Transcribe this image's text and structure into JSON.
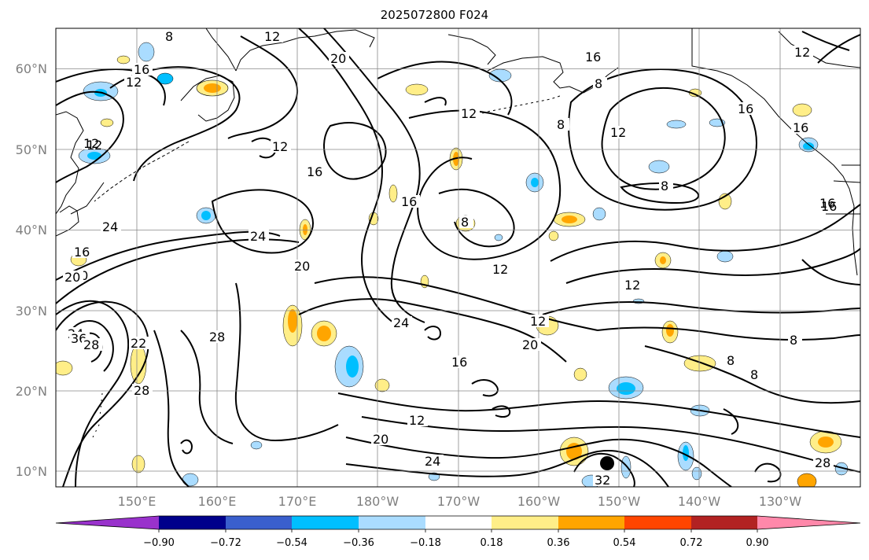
{
  "title": "2025072800 F024",
  "lon_labels": [
    "150°E",
    "160°E",
    "170°E",
    "180°W",
    "170°W",
    "160°W",
    "150°W",
    "140°W",
    "130°W"
  ],
  "lat_labels": [
    "60°N",
    "50°N",
    "40°N",
    "30°N",
    "20°N",
    "10°N"
  ],
  "colorbar": {
    "tick_labels": [
      "−0.90",
      "−0.72",
      "−0.54",
      "−0.36",
      "−0.18",
      "0.18",
      "0.36",
      "0.54",
      "0.72",
      "0.90"
    ],
    "colors": [
      "#9932cc",
      "#00008b",
      "#3a5fcd",
      "#00bfff",
      "#aadcff",
      "#ffffff",
      "#ffee88",
      "#ffa500",
      "#ff4500",
      "#b22222",
      "#ff88aa"
    ]
  },
  "contour_labels": [
    "8",
    "12",
    "16",
    "20",
    "12",
    "12",
    "16",
    "8",
    "16",
    "12",
    "16",
    "12",
    "16",
    "20",
    "16",
    "16",
    "12",
    "8",
    "12",
    "12",
    "16",
    "8",
    "8",
    "24",
    "24",
    "20",
    "16",
    "20",
    "12",
    "12",
    "24",
    "28",
    "22",
    "28",
    "24",
    "20",
    "12",
    "16",
    "20",
    "12",
    "24",
    "32",
    "36",
    "28",
    "8",
    "8",
    "8",
    "28"
  ],
  "colors": {
    "contour": "#000000",
    "grid": "#888888",
    "coast": "#000000"
  }
}
